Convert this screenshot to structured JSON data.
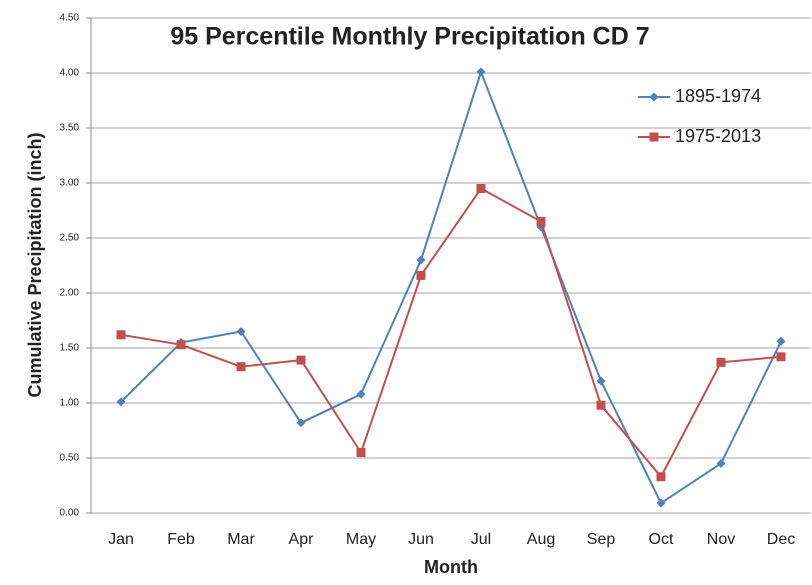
{
  "chart_data": {
    "type": "line",
    "title": "95 Percentile Monthly Precipitation CD 7",
    "x_label": "Month",
    "y_label": "Cumulative Precipitation (inch)",
    "categories": [
      "Jan",
      "Feb",
      "Mar",
      "Apr",
      "May",
      "Jun",
      "Jul",
      "Aug",
      "Sep",
      "Oct",
      "Nov",
      "Dec"
    ],
    "series": [
      {
        "name": "1895-1974",
        "color": "#4f81bd",
        "marker": "diamond",
        "values": [
          1.01,
          1.55,
          1.65,
          0.82,
          1.08,
          2.3,
          4.01,
          2.6,
          1.2,
          0.09,
          0.45,
          1.56
        ]
      },
      {
        "name": "1975-2013",
        "color": "#c0504d",
        "marker": "square",
        "values": [
          1.62,
          1.53,
          1.33,
          1.39,
          0.55,
          2.16,
          2.95,
          2.65,
          0.98,
          0.33,
          1.37,
          1.42
        ]
      }
    ],
    "ylim": [
      0,
      4.5
    ],
    "yticks": [
      {
        "value": 0,
        "label": "0.00"
      },
      {
        "value": 0.5,
        "label": "0.50"
      },
      {
        "value": 1,
        "label": "1.00"
      },
      {
        "value": 1.5,
        "label": "1.50"
      },
      {
        "value": 2,
        "label": "2.00"
      },
      {
        "value": 2.5,
        "label": "2.50"
      },
      {
        "value": 3,
        "label": "3.00"
      },
      {
        "value": 3.5,
        "label": "3.50"
      },
      {
        "value": 4,
        "label": "4.00"
      },
      {
        "value": 4.5,
        "label": "4.50"
      }
    ],
    "grid": true,
    "legend": "top-right"
  }
}
